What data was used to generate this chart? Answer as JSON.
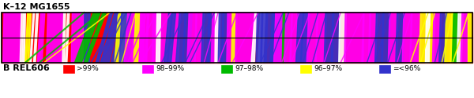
{
  "title_top": "K–12 MG1655",
  "title_bottom": "B REL606",
  "legend": [
    {
      "label": ">99%",
      "color": "#FF0000"
    },
    {
      "label": "98–99%",
      "color": "#FF00FF"
    },
    {
      "label": "97–98%",
      "color": "#00BB00"
    },
    {
      "label": "96–97%",
      "color": "#FFFF00"
    },
    {
      "label": "=<96%",
      "color": "#3333CC"
    }
  ],
  "bar_bg": "#FF0000",
  "fig_w": 6.0,
  "fig_h": 1.25,
  "bands": [
    {
      "xt": [
        0.005,
        0.04
      ],
      "xb": [
        0.003,
        0.038
      ],
      "color": "#FF00FF"
    },
    {
      "xt": [
        0.042,
        0.047
      ],
      "xb": [
        0.039,
        0.044
      ],
      "color": "#FFFFFF"
    },
    {
      "xt": [
        0.048,
        0.051
      ],
      "xb": [
        0.046,
        0.049
      ],
      "color": "#FFFFFF"
    },
    {
      "xt": [
        0.055,
        0.058
      ],
      "xb": [
        0.05,
        0.053
      ],
      "color": "#FFFF00"
    },
    {
      "xt": [
        0.06,
        0.063
      ],
      "xb": [
        0.055,
        0.058
      ],
      "color": "#FFFF00"
    },
    {
      "xt": [
        0.067,
        0.07
      ],
      "xb": [
        0.06,
        0.063
      ],
      "color": "#FFFFFF"
    },
    {
      "xt": [
        0.074,
        0.078
      ],
      "xb": [
        0.068,
        0.072
      ],
      "color": "#FFFFFF"
    },
    {
      "xt": [
        0.083,
        0.087
      ],
      "xb": [
        0.076,
        0.08
      ],
      "color": "#FF00FF"
    },
    {
      "xt": [
        0.088,
        0.092
      ],
      "xb": [
        0.082,
        0.086
      ],
      "color": "#FF00FF"
    },
    {
      "xt": [
        0.098,
        0.13
      ],
      "xb": [
        0.095,
        0.128
      ],
      "color": "#FF00FF"
    },
    {
      "xt": [
        0.132,
        0.136
      ],
      "xb": [
        0.129,
        0.133
      ],
      "color": "#FFFFFF"
    },
    {
      "xt": [
        0.14,
        0.144
      ],
      "xb": [
        0.135,
        0.139
      ],
      "color": "#FFFFFF"
    },
    {
      "xt": [
        0.15,
        0.175
      ],
      "xb": [
        0.148,
        0.173
      ],
      "color": "#FF00FF"
    },
    {
      "xt": [
        0.176,
        0.181
      ],
      "xb": [
        0.175,
        0.18
      ],
      "color": "#3333CC"
    },
    {
      "xt": [
        0.183,
        0.188
      ],
      "xb": [
        0.182,
        0.187
      ],
      "color": "#3333CC"
    },
    {
      "xt": [
        0.195,
        0.21
      ],
      "xb": [
        0.155,
        0.17
      ],
      "color": "#00BB00"
    },
    {
      "xt": [
        0.215,
        0.222
      ],
      "xb": [
        0.175,
        0.182
      ],
      "color": "#00BB00"
    },
    {
      "xt": [
        0.23,
        0.236
      ],
      "xb": [
        0.2,
        0.206
      ],
      "color": "#3333CC"
    },
    {
      "xt": [
        0.24,
        0.256
      ],
      "xb": [
        0.21,
        0.228
      ],
      "color": "#3333CC"
    },
    {
      "xt": [
        0.258,
        0.265
      ],
      "xb": [
        0.232,
        0.24
      ],
      "color": "#3333CC"
    },
    {
      "xt": [
        0.248,
        0.27
      ],
      "xb": [
        0.24,
        0.262
      ],
      "color": "#FFFF00"
    },
    {
      "xt": [
        0.255,
        0.278
      ],
      "xb": [
        0.25,
        0.272
      ],
      "color": "#3333CC"
    },
    {
      "xt": [
        0.268,
        0.286
      ],
      "xb": [
        0.26,
        0.278
      ],
      "color": "#FF00FF"
    },
    {
      "xt": [
        0.282,
        0.298
      ],
      "xb": [
        0.275,
        0.292
      ],
      "color": "#FF00FF"
    },
    {
      "xt": [
        0.296,
        0.313
      ],
      "xb": [
        0.29,
        0.308
      ],
      "color": "#FF00FF"
    },
    {
      "xt": [
        0.31,
        0.328
      ],
      "xb": [
        0.304,
        0.323
      ],
      "color": "#FF00FF"
    },
    {
      "xt": [
        0.285,
        0.295
      ],
      "xb": [
        0.28,
        0.29
      ],
      "color": "#FFFF00"
    },
    {
      "xt": [
        0.295,
        0.305
      ],
      "xb": [
        0.292,
        0.302
      ],
      "color": "#FF00FF"
    },
    {
      "xt": [
        0.32,
        0.36
      ],
      "xb": [
        0.318,
        0.36
      ],
      "color": "#FF00FF"
    },
    {
      "xt": [
        0.362,
        0.38
      ],
      "xb": [
        0.355,
        0.375
      ],
      "color": "#FF00FF"
    },
    {
      "xt": [
        0.33,
        0.338
      ],
      "xb": [
        0.328,
        0.336
      ],
      "color": "#FFFFFF"
    },
    {
      "xt": [
        0.355,
        0.362
      ],
      "xb": [
        0.345,
        0.352
      ],
      "color": "#3333CC"
    },
    {
      "xt": [
        0.363,
        0.37
      ],
      "xb": [
        0.353,
        0.36
      ],
      "color": "#3333CC"
    },
    {
      "xt": [
        0.378,
        0.393
      ],
      "xb": [
        0.37,
        0.385
      ],
      "color": "#3333CC"
    },
    {
      "xt": [
        0.39,
        0.405
      ],
      "xb": [
        0.384,
        0.399
      ],
      "color": "#3333CC"
    },
    {
      "xt": [
        0.398,
        0.415
      ],
      "xb": [
        0.394,
        0.411
      ],
      "color": "#FF00FF"
    },
    {
      "xt": [
        0.413,
        0.43
      ],
      "xb": [
        0.41,
        0.427
      ],
      "color": "#FF00FF"
    },
    {
      "xt": [
        0.428,
        0.443
      ],
      "xb": [
        0.424,
        0.44
      ],
      "color": "#3333CC"
    },
    {
      "xt": [
        0.44,
        0.452
      ],
      "xb": [
        0.437,
        0.449
      ],
      "color": "#3333CC"
    },
    {
      "xt": [
        0.448,
        0.46
      ],
      "xb": [
        0.445,
        0.457
      ],
      "color": "#FF00FF"
    },
    {
      "xt": [
        0.454,
        0.464
      ],
      "xb": [
        0.453,
        0.463
      ],
      "color": "#FFFFFF"
    },
    {
      "xt": [
        0.462,
        0.472
      ],
      "xb": [
        0.46,
        0.47
      ],
      "color": "#3333CC"
    },
    {
      "xt": [
        0.47,
        0.482
      ],
      "xb": [
        0.467,
        0.479
      ],
      "color": "#3333CC"
    },
    {
      "xt": [
        0.48,
        0.5
      ],
      "xb": [
        0.478,
        0.498
      ],
      "color": "#FF00FF"
    },
    {
      "xt": [
        0.5,
        0.54
      ],
      "xb": [
        0.495,
        0.535
      ],
      "color": "#FF00FF"
    },
    {
      "xt": [
        0.49,
        0.496
      ],
      "xb": [
        0.488,
        0.494
      ],
      "color": "#FFFF00"
    },
    {
      "xt": [
        0.538,
        0.545
      ],
      "xb": [
        0.53,
        0.537
      ],
      "color": "#FFFFFF"
    },
    {
      "xt": [
        0.55,
        0.56
      ],
      "xb": [
        0.544,
        0.555
      ],
      "color": "#FFFFFF"
    },
    {
      "xt": [
        0.543,
        0.555
      ],
      "xb": [
        0.54,
        0.552
      ],
      "color": "#3333CC"
    },
    {
      "xt": [
        0.553,
        0.565
      ],
      "xb": [
        0.55,
        0.562
      ],
      "color": "#3333CC"
    },
    {
      "xt": [
        0.562,
        0.58
      ],
      "xb": [
        0.558,
        0.578
      ],
      "color": "#3333CC"
    },
    {
      "xt": [
        0.575,
        0.598
      ],
      "xb": [
        0.57,
        0.593
      ],
      "color": "#3333CC"
    },
    {
      "xt": [
        0.582,
        0.6
      ],
      "xb": [
        0.578,
        0.596
      ],
      "color": "#FF00FF"
    },
    {
      "xt": [
        0.598,
        0.606
      ],
      "xb": [
        0.596,
        0.604
      ],
      "color": "#00BB00"
    },
    {
      "xt": [
        0.604,
        0.618
      ],
      "xb": [
        0.6,
        0.614
      ],
      "color": "#FF00FF"
    },
    {
      "xt": [
        0.616,
        0.632
      ],
      "xb": [
        0.612,
        0.628
      ],
      "color": "#FF00FF"
    },
    {
      "xt": [
        0.628,
        0.65
      ],
      "xb": [
        0.626,
        0.648
      ],
      "color": "#FF00FF"
    },
    {
      "xt": [
        0.63,
        0.642
      ],
      "xb": [
        0.625,
        0.637
      ],
      "color": "#3333CC"
    },
    {
      "xt": [
        0.64,
        0.655
      ],
      "xb": [
        0.635,
        0.65
      ],
      "color": "#3333CC"
    },
    {
      "xt": [
        0.652,
        0.672
      ],
      "xb": [
        0.648,
        0.668
      ],
      "color": "#FF00FF"
    },
    {
      "xt": [
        0.67,
        0.69
      ],
      "xb": [
        0.667,
        0.687
      ],
      "color": "#FF00FF"
    },
    {
      "xt": [
        0.688,
        0.706
      ],
      "xb": [
        0.685,
        0.703
      ],
      "color": "#3333CC"
    },
    {
      "xt": [
        0.703,
        0.72
      ],
      "xb": [
        0.7,
        0.717
      ],
      "color": "#3333CC"
    },
    {
      "xt": [
        0.718,
        0.732
      ],
      "xb": [
        0.716,
        0.73
      ],
      "color": "#FFFFFF"
    },
    {
      "xt": [
        0.73,
        0.77
      ],
      "xb": [
        0.728,
        0.768
      ],
      "color": "#FF00FF"
    },
    {
      "xt": [
        0.768,
        0.784
      ],
      "xb": [
        0.765,
        0.781
      ],
      "color": "#FF00FF"
    },
    {
      "xt": [
        0.782,
        0.798
      ],
      "xb": [
        0.779,
        0.795
      ],
      "color": "#FF00FF"
    },
    {
      "xt": [
        0.796,
        0.812
      ],
      "xb": [
        0.793,
        0.809
      ],
      "color": "#3333CC"
    },
    {
      "xt": [
        0.81,
        0.826
      ],
      "xb": [
        0.807,
        0.823
      ],
      "color": "#3333CC"
    },
    {
      "xt": [
        0.824,
        0.842
      ],
      "xb": [
        0.821,
        0.839
      ],
      "color": "#FF00FF"
    },
    {
      "xt": [
        0.84,
        0.856
      ],
      "xb": [
        0.837,
        0.853
      ],
      "color": "#3333CC"
    },
    {
      "xt": [
        0.854,
        0.872
      ],
      "xb": [
        0.851,
        0.869
      ],
      "color": "#FF00FF"
    },
    {
      "xt": [
        0.87,
        0.892
      ],
      "xb": [
        0.867,
        0.889
      ],
      "color": "#FF00FF"
    },
    {
      "xt": [
        0.89,
        0.906
      ],
      "xb": [
        0.887,
        0.903
      ],
      "color": "#FFFF00"
    },
    {
      "xt": [
        0.904,
        0.92
      ],
      "xb": [
        0.901,
        0.917
      ],
      "color": "#FFFF00"
    },
    {
      "xt": [
        0.902,
        0.91
      ],
      "xb": [
        0.9,
        0.908
      ],
      "color": "#FFFFFF"
    },
    {
      "xt": [
        0.918,
        0.934
      ],
      "xb": [
        0.915,
        0.931
      ],
      "color": "#FF00FF"
    },
    {
      "xt": [
        0.932,
        0.946
      ],
      "xb": [
        0.929,
        0.943
      ],
      "color": "#3333CC"
    },
    {
      "xt": [
        0.944,
        0.958
      ],
      "xb": [
        0.941,
        0.955
      ],
      "color": "#FFFF00"
    },
    {
      "xt": [
        0.956,
        0.968
      ],
      "xb": [
        0.953,
        0.965
      ],
      "color": "#FFFF00"
    },
    {
      "xt": [
        0.96,
        0.972
      ],
      "xb": [
        0.957,
        0.969
      ],
      "color": "#00BB00"
    },
    {
      "xt": [
        0.97,
        0.98
      ],
      "xb": [
        0.967,
        0.977
      ],
      "color": "#FFFFFF"
    },
    {
      "xt": [
        0.978,
        0.992
      ],
      "xb": [
        0.975,
        0.989
      ],
      "color": "#FF00FF"
    },
    {
      "xt": [
        0.99,
        0.999
      ],
      "xb": [
        0.99,
        0.999
      ],
      "color": "#FFFF00"
    }
  ],
  "diag_lines": [
    {
      "xt": 0.175,
      "xb": 0.05,
      "color": "#00BB00",
      "lw": 1.5
    },
    {
      "xt": 0.21,
      "xb": 0.08,
      "color": "#00BB00",
      "lw": 1.5
    },
    {
      "xt": 0.23,
      "xb": 0.09,
      "color": "#FFFF00",
      "lw": 1.2
    },
    {
      "xt": 0.248,
      "xb": 0.19,
      "color": "#3333CC",
      "lw": 1.2
    },
    {
      "xt": 0.258,
      "xb": 0.2,
      "color": "#3333CC",
      "lw": 1.2
    },
    {
      "xt": 0.265,
      "xb": 0.21,
      "color": "#3333CC",
      "lw": 1.2
    },
    {
      "xt": 0.275,
      "xb": 0.24,
      "color": "#3333CC",
      "lw": 1.2
    },
    {
      "xt": 0.285,
      "xb": 0.255,
      "color": "#FFFF00",
      "lw": 1.0
    },
    {
      "xt": 0.31,
      "xb": 0.268,
      "color": "#FF00FF",
      "lw": 1.2
    },
    {
      "xt": 0.328,
      "xb": 0.278,
      "color": "#FF00FF",
      "lw": 1.2
    },
    {
      "xt": 0.36,
      "xb": 0.295,
      "color": "#FF00FF",
      "lw": 1.2
    },
    {
      "xt": 0.39,
      "xb": 0.34,
      "color": "#3333CC",
      "lw": 1.0
    },
    {
      "xt": 0.44,
      "xb": 0.39,
      "color": "#3333CC",
      "lw": 1.0
    },
    {
      "xt": 0.452,
      "xb": 0.4,
      "color": "#3333CC",
      "lw": 1.0
    },
    {
      "xt": 0.46,
      "xb": 0.43,
      "color": "#FF00FF",
      "lw": 1.0
    },
    {
      "xt": 0.5,
      "xb": 0.46,
      "color": "#FF00FF",
      "lw": 1.0
    },
    {
      "xt": 0.545,
      "xb": 0.49,
      "color": "#FF00FF",
      "lw": 1.0
    },
    {
      "xt": 0.598,
      "xb": 0.55,
      "color": "#3333CC",
      "lw": 1.0
    },
    {
      "xt": 0.61,
      "xb": 0.57,
      "color": "#3333CC",
      "lw": 1.0
    },
    {
      "xt": 0.632,
      "xb": 0.595,
      "color": "#FF00FF",
      "lw": 1.0
    },
    {
      "xt": 0.655,
      "xb": 0.615,
      "color": "#FF00FF",
      "lw": 1.0
    },
    {
      "xt": 0.672,
      "xb": 0.64,
      "color": "#3333CC",
      "lw": 1.0
    },
    {
      "xt": 0.69,
      "xb": 0.66,
      "color": "#3333CC",
      "lw": 1.0
    },
    {
      "xt": 0.72,
      "xb": 0.685,
      "color": "#FF00FF",
      "lw": 1.0
    },
    {
      "xt": 0.77,
      "xb": 0.72,
      "color": "#FF00FF",
      "lw": 1.0
    },
    {
      "xt": 0.812,
      "xb": 0.776,
      "color": "#3333CC",
      "lw": 1.0
    },
    {
      "xt": 0.826,
      "xb": 0.793,
      "color": "#3333CC",
      "lw": 1.0
    },
    {
      "xt": 0.856,
      "xb": 0.82,
      "color": "#3333CC",
      "lw": 1.0
    },
    {
      "xt": 0.872,
      "xb": 0.84,
      "color": "#FF00FF",
      "lw": 1.0
    },
    {
      "xt": 0.906,
      "xb": 0.868,
      "color": "#FFFF00",
      "lw": 1.2
    },
    {
      "xt": 0.92,
      "xb": 0.89,
      "color": "#FFFF00",
      "lw": 1.2
    },
    {
      "xt": 0.946,
      "xb": 0.92,
      "color": "#3333CC",
      "lw": 1.0
    },
    {
      "xt": 0.958,
      "xb": 0.935,
      "color": "#FFFF00",
      "lw": 1.2
    },
    {
      "xt": 0.992,
      "xb": 0.958,
      "color": "#FFFF00",
      "lw": 1.2
    }
  ]
}
